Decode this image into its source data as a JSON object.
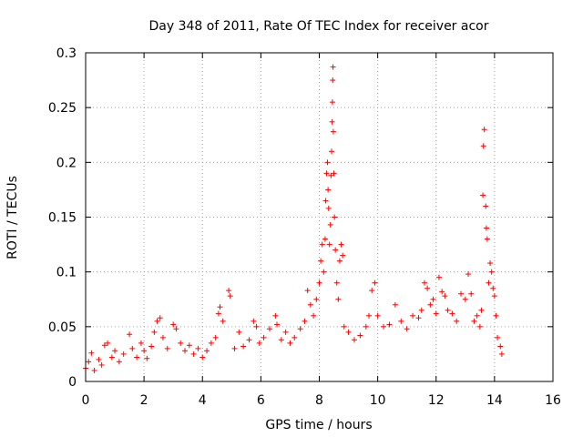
{
  "chart_data": {
    "type": "scatter",
    "title": "Day 348 of 2011, Rate Of TEC Index for receiver acor",
    "xlabel": "GPS time / hours",
    "ylabel": "ROTI / TECUs",
    "xlim": [
      0,
      16
    ],
    "ylim": [
      0,
      0.3
    ],
    "xticks": [
      0,
      2,
      4,
      6,
      8,
      10,
      12,
      14,
      16
    ],
    "yticks": [
      0,
      0.05,
      0.1,
      0.15,
      0.2,
      0.25,
      0.3
    ],
    "ytick_labels": [
      "0",
      "0.05",
      "0.1",
      "0.15",
      "0.2",
      "0.25",
      "0.3"
    ],
    "grid": true,
    "marker": "+",
    "marker_color": "#ff0000",
    "series": [
      {
        "name": "ROTI",
        "points": [
          [
            0.0,
            0.012
          ],
          [
            0.1,
            0.018
          ],
          [
            0.2,
            0.026
          ],
          [
            0.3,
            0.01
          ],
          [
            0.45,
            0.02
          ],
          [
            0.55,
            0.015
          ],
          [
            0.65,
            0.033
          ],
          [
            0.75,
            0.035
          ],
          [
            0.9,
            0.022
          ],
          [
            1.0,
            0.028
          ],
          [
            1.15,
            0.018
          ],
          [
            1.3,
            0.025
          ],
          [
            1.5,
            0.043
          ],
          [
            1.6,
            0.03
          ],
          [
            1.75,
            0.022
          ],
          [
            1.9,
            0.035
          ],
          [
            2.0,
            0.028
          ],
          [
            2.1,
            0.021
          ],
          [
            2.25,
            0.032
          ],
          [
            2.35,
            0.045
          ],
          [
            2.45,
            0.055
          ],
          [
            2.55,
            0.058
          ],
          [
            2.65,
            0.04
          ],
          [
            2.8,
            0.03
          ],
          [
            3.0,
            0.052
          ],
          [
            3.1,
            0.048
          ],
          [
            3.25,
            0.035
          ],
          [
            3.4,
            0.028
          ],
          [
            3.55,
            0.033
          ],
          [
            3.7,
            0.025
          ],
          [
            3.85,
            0.03
          ],
          [
            4.0,
            0.022
          ],
          [
            4.15,
            0.028
          ],
          [
            4.3,
            0.035
          ],
          [
            4.45,
            0.04
          ],
          [
            4.55,
            0.062
          ],
          [
            4.6,
            0.068
          ],
          [
            4.7,
            0.055
          ],
          [
            4.9,
            0.083
          ],
          [
            4.95,
            0.078
          ],
          [
            5.1,
            0.03
          ],
          [
            5.25,
            0.045
          ],
          [
            5.4,
            0.032
          ],
          [
            5.6,
            0.038
          ],
          [
            5.75,
            0.055
          ],
          [
            5.85,
            0.05
          ],
          [
            5.95,
            0.035
          ],
          [
            6.1,
            0.04
          ],
          [
            6.3,
            0.048
          ],
          [
            6.5,
            0.06
          ],
          [
            6.55,
            0.052
          ],
          [
            6.7,
            0.038
          ],
          [
            6.85,
            0.045
          ],
          [
            7.0,
            0.035
          ],
          [
            7.15,
            0.04
          ],
          [
            7.35,
            0.048
          ],
          [
            7.5,
            0.055
          ],
          [
            7.6,
            0.083
          ],
          [
            7.7,
            0.07
          ],
          [
            7.8,
            0.06
          ],
          [
            7.9,
            0.075
          ],
          [
            8.0,
            0.09
          ],
          [
            8.05,
            0.11
          ],
          [
            8.1,
            0.125
          ],
          [
            8.15,
            0.1
          ],
          [
            8.2,
            0.13
          ],
          [
            8.22,
            0.165
          ],
          [
            8.25,
            0.19
          ],
          [
            8.28,
            0.2
          ],
          [
            8.3,
            0.175
          ],
          [
            8.32,
            0.158
          ],
          [
            8.35,
            0.125
          ],
          [
            8.38,
            0.143
          ],
          [
            8.4,
            0.188
          ],
          [
            8.42,
            0.21
          ],
          [
            8.44,
            0.237
          ],
          [
            8.45,
            0.255
          ],
          [
            8.46,
            0.275
          ],
          [
            8.47,
            0.287
          ],
          [
            8.48,
            0.228
          ],
          [
            8.5,
            0.19
          ],
          [
            8.52,
            0.15
          ],
          [
            8.55,
            0.12
          ],
          [
            8.6,
            0.09
          ],
          [
            8.65,
            0.075
          ],
          [
            8.7,
            0.11
          ],
          [
            8.75,
            0.125
          ],
          [
            8.8,
            0.115
          ],
          [
            8.85,
            0.05
          ],
          [
            9.0,
            0.045
          ],
          [
            9.2,
            0.038
          ],
          [
            9.4,
            0.042
          ],
          [
            9.6,
            0.05
          ],
          [
            9.7,
            0.06
          ],
          [
            9.8,
            0.083
          ],
          [
            9.9,
            0.09
          ],
          [
            10.0,
            0.06
          ],
          [
            10.2,
            0.05
          ],
          [
            10.4,
            0.052
          ],
          [
            10.6,
            0.07
          ],
          [
            10.8,
            0.055
          ],
          [
            11.0,
            0.048
          ],
          [
            11.2,
            0.06
          ],
          [
            11.4,
            0.058
          ],
          [
            11.5,
            0.065
          ],
          [
            11.6,
            0.09
          ],
          [
            11.7,
            0.085
          ],
          [
            11.8,
            0.07
          ],
          [
            11.9,
            0.075
          ],
          [
            12.0,
            0.062
          ],
          [
            12.1,
            0.095
          ],
          [
            12.2,
            0.082
          ],
          [
            12.3,
            0.078
          ],
          [
            12.4,
            0.065
          ],
          [
            12.55,
            0.062
          ],
          [
            12.7,
            0.055
          ],
          [
            12.85,
            0.08
          ],
          [
            13.0,
            0.075
          ],
          [
            13.1,
            0.098
          ],
          [
            13.2,
            0.08
          ],
          [
            13.3,
            0.055
          ],
          [
            13.4,
            0.06
          ],
          [
            13.5,
            0.05
          ],
          [
            13.55,
            0.065
          ],
          [
            13.6,
            0.17
          ],
          [
            13.62,
            0.215
          ],
          [
            13.65,
            0.23
          ],
          [
            13.7,
            0.16
          ],
          [
            13.72,
            0.14
          ],
          [
            13.75,
            0.13
          ],
          [
            13.8,
            0.09
          ],
          [
            13.85,
            0.108
          ],
          [
            13.9,
            0.1
          ],
          [
            13.95,
            0.085
          ],
          [
            14.0,
            0.078
          ],
          [
            14.05,
            0.06
          ],
          [
            14.1,
            0.04
          ],
          [
            14.2,
            0.032
          ],
          [
            14.25,
            0.025
          ]
        ]
      }
    ]
  }
}
